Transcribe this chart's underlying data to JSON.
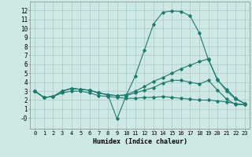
{
  "title": "",
  "xlabel": "Humidex (Indice chaleur)",
  "background_color": "#cde8e5",
  "grid_color": "#aecfcc",
  "line_color": "#1e7a6e",
  "xlim": [
    -0.5,
    23.5
  ],
  "ylim": [
    -1.2,
    13.0
  ],
  "xticks": [
    0,
    1,
    2,
    3,
    4,
    5,
    6,
    7,
    8,
    9,
    10,
    11,
    12,
    13,
    14,
    15,
    16,
    17,
    18,
    19,
    20,
    21,
    22,
    23
  ],
  "ytick_vals": [
    0,
    1,
    2,
    3,
    4,
    5,
    6,
    7,
    8,
    9,
    10,
    11,
    12
  ],
  "ytick_labels": [
    "-0",
    "1",
    "2",
    "3",
    "4",
    "5",
    "6",
    "7",
    "8",
    "9",
    "10",
    "11",
    "12"
  ],
  "series": [
    {
      "x": [
        0,
        1,
        2,
        3,
        4,
        5,
        6,
        7,
        8,
        9,
        10,
        11,
        12,
        13,
        14,
        15,
        16,
        17,
        18,
        19,
        20,
        21,
        22,
        23
      ],
      "y": [
        3.0,
        2.3,
        2.4,
        3.0,
        3.3,
        3.2,
        3.1,
        2.8,
        2.6,
        -0.1,
        2.5,
        4.7,
        7.6,
        10.5,
        11.8,
        11.95,
        11.9,
        11.4,
        9.5,
        6.5,
        4.3,
        3.0,
        2.1,
        1.6
      ]
    },
    {
      "x": [
        0,
        1,
        2,
        3,
        4,
        5,
        6,
        7,
        8,
        9,
        10,
        11,
        12,
        13,
        14,
        15,
        16,
        17,
        18,
        19,
        20,
        21,
        22,
        23
      ],
      "y": [
        3.0,
        2.3,
        2.4,
        3.0,
        3.3,
        3.2,
        3.1,
        2.8,
        2.6,
        2.5,
        2.6,
        3.0,
        3.5,
        4.1,
        4.5,
        5.0,
        5.5,
        5.9,
        6.3,
        6.6,
        4.2,
        3.2,
        2.2,
        1.6
      ]
    },
    {
      "x": [
        0,
        1,
        2,
        3,
        4,
        5,
        6,
        7,
        8,
        9,
        10,
        11,
        12,
        13,
        14,
        15,
        16,
        17,
        18,
        19,
        20,
        21,
        22,
        23
      ],
      "y": [
        3.0,
        2.3,
        2.4,
        3.0,
        3.3,
        3.2,
        3.1,
        2.8,
        2.6,
        2.5,
        2.5,
        2.8,
        3.1,
        3.4,
        3.9,
        4.2,
        4.2,
        4.0,
        3.8,
        4.2,
        3.1,
        2.1,
        1.5,
        1.5
      ]
    },
    {
      "x": [
        0,
        1,
        2,
        3,
        4,
        5,
        6,
        7,
        8,
        9,
        10,
        11,
        12,
        13,
        14,
        15,
        16,
        17,
        18,
        19,
        20,
        21,
        22,
        23
      ],
      "y": [
        3.0,
        2.3,
        2.4,
        2.8,
        3.0,
        3.0,
        2.8,
        2.5,
        2.4,
        2.3,
        2.2,
        2.2,
        2.3,
        2.3,
        2.4,
        2.3,
        2.2,
        2.1,
        2.0,
        2.0,
        1.9,
        1.8,
        1.6,
        1.5
      ]
    }
  ]
}
